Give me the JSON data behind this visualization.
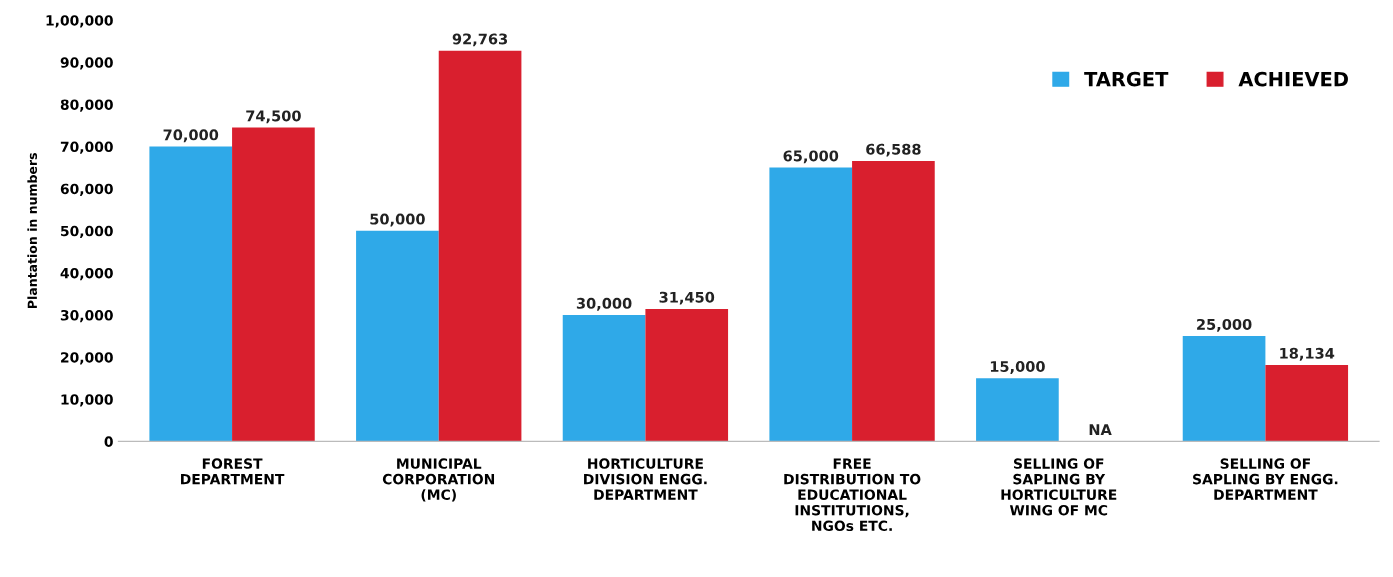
{
  "chart_data": {
    "type": "bar",
    "ylabel": "Plantation in numbers",
    "categories": [
      "FOREST\nDEPARTMENT",
      "MUNICIPAL\nCORPORATION\n(MC)",
      "HORTICULTURE\nDIVISION ENGG.\nDEPARTMENT",
      "FREE\nDISTRIBUTION TO\nEDUCATIONAL\nINSTITUTIONS,\nNGOs ETC.",
      "SELLING OF\nSAPLING BY\nHORTICULTURE\nWING OF MC",
      "SELLING OF\nSAPLING BY ENGG.\nDEPARTMENT"
    ],
    "series": [
      {
        "name": "TARGET",
        "color": "#2fa9e8",
        "values": [
          70000,
          50000,
          30000,
          65000,
          15000,
          25000
        ],
        "value_labels": [
          "70,000",
          "50,000",
          "30,000",
          "65,000",
          "15,000",
          "25,000"
        ]
      },
      {
        "name": "ACHIEVED",
        "color": "#d91f2e",
        "values": [
          74500,
          92763,
          31450,
          66588,
          null,
          18134
        ],
        "value_labels": [
          "74,500",
          "92,763",
          "31,450",
          "66,588",
          "NA",
          "18,134"
        ]
      }
    ],
    "ylim": [
      0,
      100000
    ],
    "yticks": [
      0,
      {
        "value": 10000,
        "label": "10,000"
      },
      {
        "value": 20000,
        "label": "20,000"
      },
      {
        "value": 30000,
        "label": "30,000"
      },
      {
        "value": 40000,
        "label": "40,000"
      },
      {
        "value": 50000,
        "label": "50,000"
      },
      {
        "value": 60000,
        "label": "60,000"
      },
      {
        "value": 70000,
        "label": "70,000"
      },
      {
        "value": 80000,
        "label": "80,000"
      },
      {
        "value": 90000,
        "label": "90,000"
      },
      {
        "value": 100000,
        "label": "1,00,000"
      }
    ],
    "grid": false,
    "legend": "top right"
  }
}
